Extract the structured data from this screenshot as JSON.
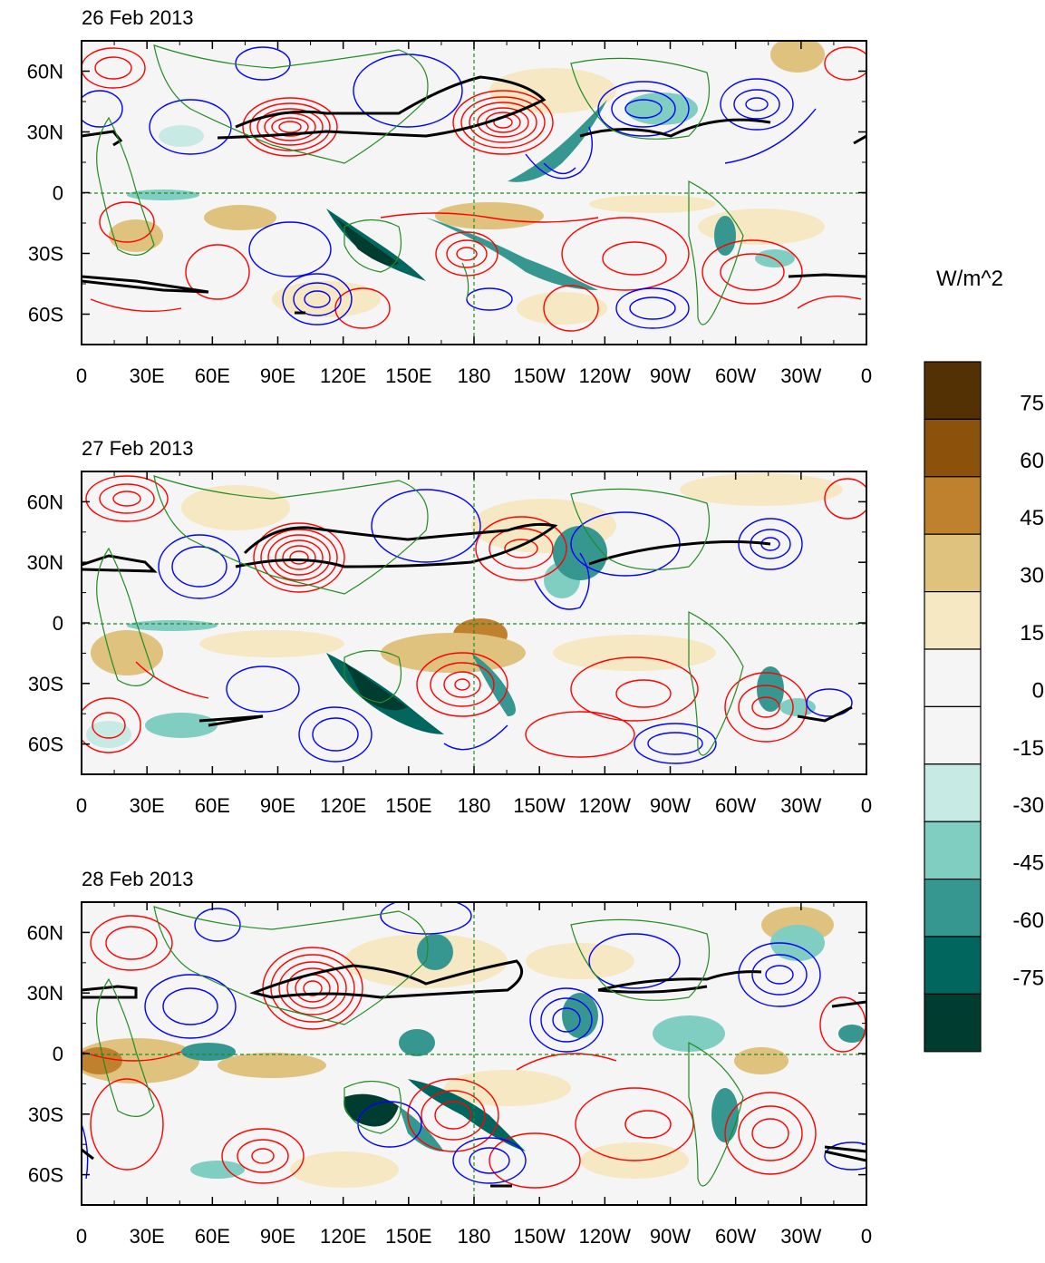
{
  "panels": [
    {
      "title": "26 Feb 2013"
    },
    {
      "title": "27 Feb 2013"
    },
    {
      "title": "28 Feb 2013"
    }
  ],
  "lat_ticks": [
    "60N",
    "30N",
    "0",
    "30S",
    "60S"
  ],
  "lat_values": [
    60,
    30,
    0,
    -30,
    -60
  ],
  "lon_ticks": [
    "0",
    "30E",
    "60E",
    "90E",
    "120E",
    "150E",
    "180",
    "150W",
    "120W",
    "90W",
    "60W",
    "30W",
    "0"
  ],
  "colorbar": {
    "units": "W/m^2",
    "labels": [
      "75",
      "60",
      "45",
      "30",
      "15",
      "0",
      "-15",
      "-30",
      "-45",
      "-60",
      "-75"
    ],
    "colors": [
      "#543005",
      "#8c510a",
      "#bf812d",
      "#dfc27d",
      "#f6e8c3",
      "#f5f5f5",
      "#f5f5f5",
      "#c7eae5",
      "#80cdc1",
      "#35978f",
      "#01665e",
      "#003c30"
    ]
  },
  "map": {
    "land_color": "#228b22",
    "positive_contour_color": "#ff0000",
    "negative_contour_color": "#0000ff",
    "thick_contour_color": "#000000",
    "reference_line_color": "#228b22"
  }
}
